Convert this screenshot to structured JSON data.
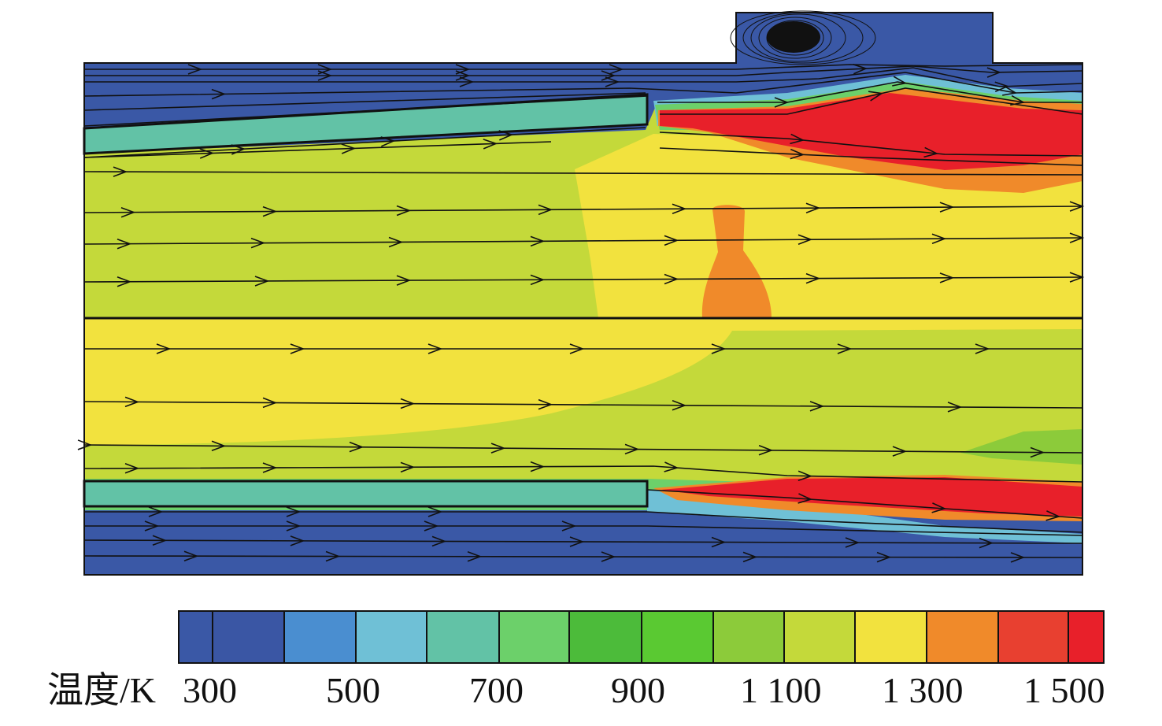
{
  "colorbar": {
    "label": "温度/K",
    "ticks": [
      "300",
      "500",
      "700",
      "900",
      "1 100",
      "1 300",
      "1 500"
    ],
    "colors": [
      "#3a58a6",
      "#3a56a4",
      "#4a8ed0",
      "#6fc0d6",
      "#62c2a6",
      "#6cd06a",
      "#4cbb3a",
      "#5ac932",
      "#8ccb3a",
      "#c4d93a",
      "#f2e23e",
      "#f08a2a",
      "#e84030",
      "#e8202a"
    ]
  },
  "palette": {
    "blue": "#3a58a6",
    "teal": "#62c2a6",
    "green": "#5bc456",
    "yellowgreen": "#c4d93a",
    "yellow": "#f2e23e",
    "orange": "#f08a2a",
    "red": "#e8202a",
    "lightblue": "#6fc0d6"
  }
}
